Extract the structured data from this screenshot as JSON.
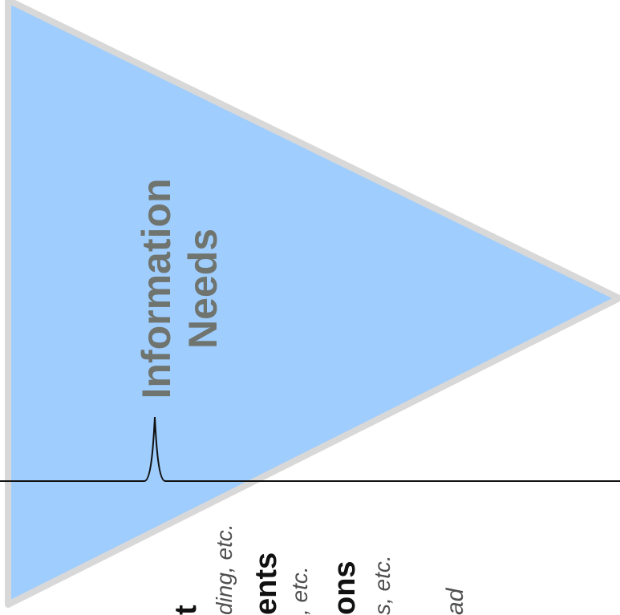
{
  "diagram": {
    "title": {
      "line1": "Information",
      "line2": "Needs"
    },
    "bottom_labels": [
      {
        "main": "t",
        "sub": "ding, etc."
      },
      {
        "main": "ents",
        "sub": ", etc."
      },
      {
        "main": "ons",
        "sub": "s, etc."
      },
      {
        "main": "ad",
        "sub": ""
      }
    ],
    "colors": {
      "triangle_fill": "#9fcdfd",
      "triangle_stroke": "#d8d8d8",
      "axis_line": "#111111",
      "title_text": "#6f746f"
    }
  }
}
